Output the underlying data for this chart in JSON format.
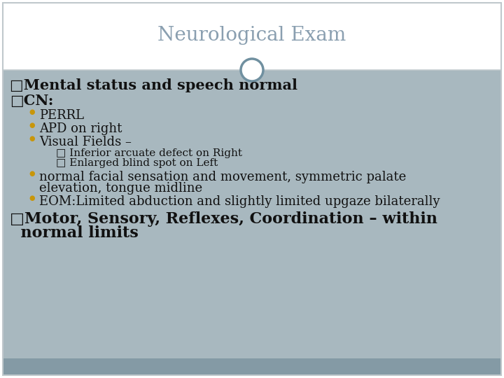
{
  "title": "Neurological Exam",
  "title_color": "#8a9fb0",
  "title_fontsize": 20,
  "bg_color": "#ffffff",
  "content_bg_color": "#a8b8bf",
  "bottom_bar_color": "#849aa5",
  "header_line_color": "#c0c8cc",
  "circle_edgecolor": "#7090a0",
  "bullet1_text": "□Mental status and speech normal",
  "bullet2_text": "□CN:",
  "sub_bullets": [
    "PERRL",
    "APD on right",
    "Visual Fields –"
  ],
  "sub_sub_bullets": [
    "□ Inferior arcuate defect on Right",
    "□ Enlarged blind spot on Left"
  ],
  "sub_bullets2_line1": "normal facial sensation and movement, symmetric palate",
  "sub_bullets2_line2": "elevation, tongue midline",
  "sub_bullets3": "EOM:Limited abduction and slightly limited upgaze bilaterally",
  "bullet3_line1": "□Motor, Sensory, Reflexes, Coordination – within",
  "bullet3_line2": "  normal limits",
  "main_bullet_fontsize": 15,
  "sub_bullet_fontsize": 13,
  "sub_sub_bullet_fontsize": 11,
  "bullet3_fontsize": 16,
  "bullet_marker_color": "#c8960a",
  "text_color": "#111111",
  "border_color": "#c0c8cc",
  "header_bg": "#ffffff"
}
